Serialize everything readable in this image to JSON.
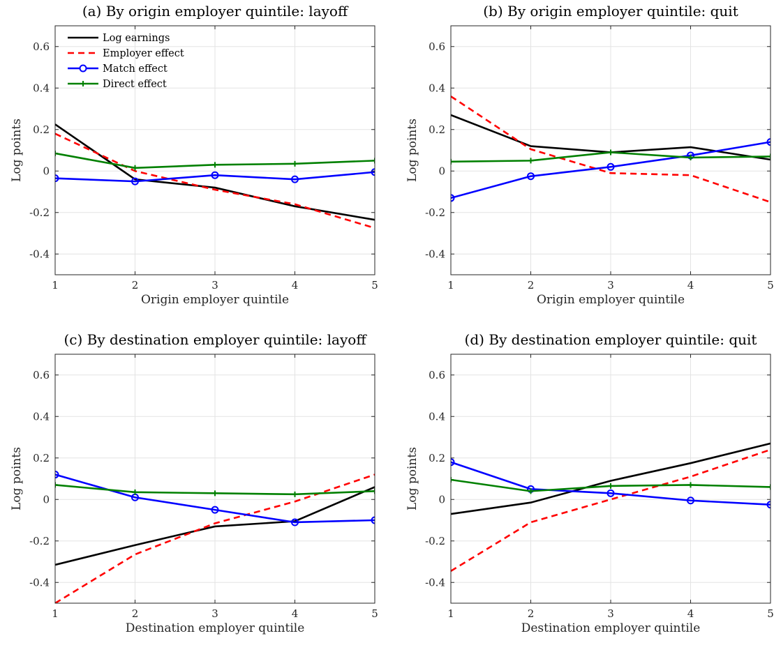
{
  "figure": {
    "legend_entries": [
      "Log earnings",
      "Employer effect",
      "Match effect",
      "Direct effect"
    ],
    "series_colors": {
      "Log earnings": "#000000",
      "Employer effect": "#ff0000",
      "Match effect": "#0000ff",
      "Direct effect": "#008000"
    }
  },
  "chart_data": [
    {
      "type": "line",
      "title": "(a) By origin employer quintile: layoff",
      "xlabel": "Origin employer quintile",
      "ylabel": "Log points",
      "x": [
        1,
        2,
        3,
        4,
        5
      ],
      "xlim": [
        1,
        5
      ],
      "ylim": [
        -0.5,
        0.7
      ],
      "yticks": [
        -0.4,
        -0.2,
        0,
        0.2,
        0.4,
        0.6
      ],
      "grid": true,
      "legend": "top-left",
      "series": [
        {
          "name": "Log earnings",
          "values": [
            0.225,
            -0.04,
            -0.08,
            -0.17,
            -0.235
          ]
        },
        {
          "name": "Employer effect",
          "values": [
            0.18,
            0.0,
            -0.09,
            -0.16,
            -0.275
          ]
        },
        {
          "name": "Match effect",
          "values": [
            -0.035,
            -0.05,
            -0.02,
            -0.04,
            -0.005
          ]
        },
        {
          "name": "Direct effect",
          "values": [
            0.085,
            0.015,
            0.03,
            0.035,
            0.05
          ]
        }
      ]
    },
    {
      "type": "line",
      "title": "(b) By origin employer quintile: quit",
      "xlabel": "Origin employer quintile",
      "ylabel": "Log points",
      "x": [
        1,
        2,
        3,
        4,
        5
      ],
      "xlim": [
        1,
        5
      ],
      "ylim": [
        -0.5,
        0.7
      ],
      "yticks": [
        -0.4,
        -0.2,
        0,
        0.2,
        0.4,
        0.6
      ],
      "grid": true,
      "series": [
        {
          "name": "Log earnings",
          "values": [
            0.27,
            0.12,
            0.09,
            0.115,
            0.055
          ]
        },
        {
          "name": "Employer effect",
          "values": [
            0.36,
            0.105,
            -0.01,
            -0.02,
            -0.15
          ]
        },
        {
          "name": "Match effect",
          "values": [
            -0.13,
            -0.025,
            0.02,
            0.075,
            0.14
          ]
        },
        {
          "name": "Direct effect",
          "values": [
            0.045,
            0.05,
            0.09,
            0.065,
            0.07
          ]
        }
      ]
    },
    {
      "type": "line",
      "title": "(c) By destination employer quintile: layoff",
      "xlabel": "Destination employer quintile",
      "ylabel": "Log points",
      "x": [
        1,
        2,
        3,
        4,
        5
      ],
      "xlim": [
        1,
        5
      ],
      "ylim": [
        -0.5,
        0.7
      ],
      "yticks": [
        -0.4,
        -0.2,
        0,
        0.2,
        0.4,
        0.6
      ],
      "grid": true,
      "series": [
        {
          "name": "Log earnings",
          "values": [
            -0.315,
            -0.22,
            -0.13,
            -0.105,
            0.06
          ]
        },
        {
          "name": "Employer effect",
          "values": [
            -0.5,
            -0.265,
            -0.115,
            -0.01,
            0.12
          ]
        },
        {
          "name": "Match effect",
          "values": [
            0.12,
            0.01,
            -0.05,
            -0.11,
            -0.1
          ]
        },
        {
          "name": "Direct effect",
          "values": [
            0.07,
            0.035,
            0.03,
            0.025,
            0.04
          ]
        }
      ]
    },
    {
      "type": "line",
      "title": "(d) By destination employer quintile: quit",
      "xlabel": "Destination employer quintile",
      "ylabel": "Log points",
      "x": [
        1,
        2,
        3,
        4,
        5
      ],
      "xlim": [
        1,
        5
      ],
      "ylim": [
        -0.5,
        0.7
      ],
      "yticks": [
        -0.4,
        -0.2,
        0,
        0.2,
        0.4,
        0.6
      ],
      "grid": true,
      "series": [
        {
          "name": "Log earnings",
          "values": [
            -0.07,
            -0.015,
            0.09,
            0.175,
            0.27
          ]
        },
        {
          "name": "Employer effect",
          "values": [
            -0.345,
            -0.11,
            0.0,
            0.11,
            0.24
          ]
        },
        {
          "name": "Match effect",
          "values": [
            0.18,
            0.05,
            0.03,
            -0.005,
            -0.025
          ]
        },
        {
          "name": "Direct effect",
          "values": [
            0.095,
            0.04,
            0.065,
            0.07,
            0.06
          ]
        }
      ]
    }
  ]
}
